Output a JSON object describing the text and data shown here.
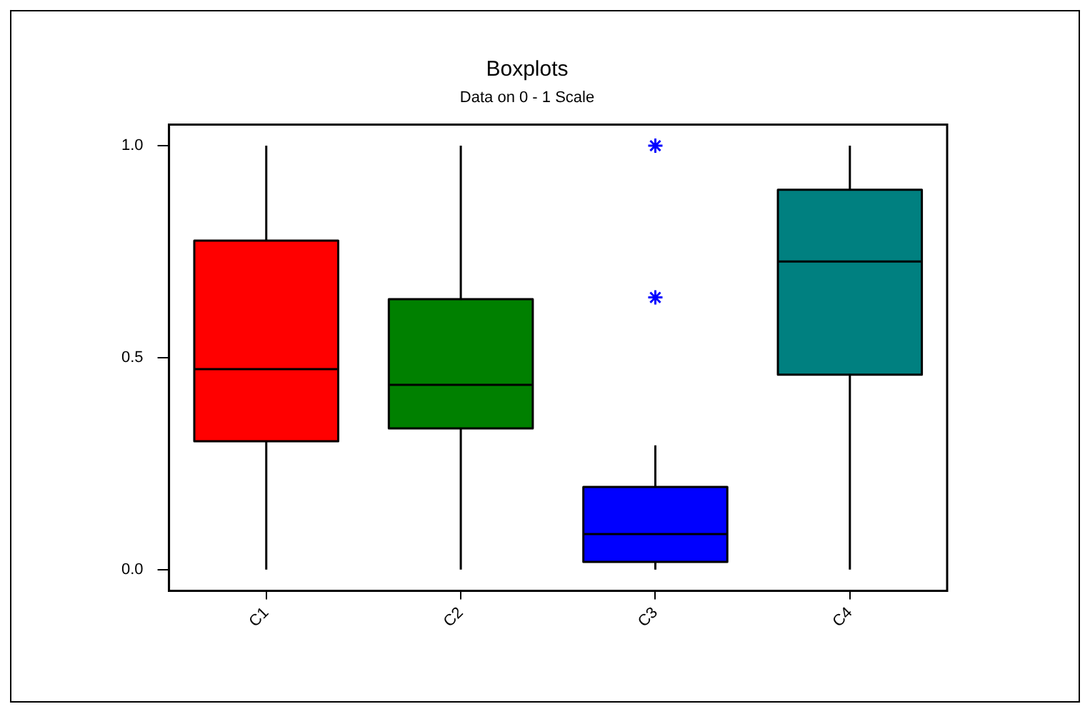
{
  "chart_data": {
    "type": "box",
    "title": "Boxplots",
    "subtitle": "Data on 0 - 1 Scale",
    "categories": [
      "C1",
      "C2",
      "C3",
      "C4"
    ],
    "colors": [
      "#ff0000",
      "#008000",
      "#0000ff",
      "#008080"
    ],
    "boxes": [
      {
        "low": 0.0,
        "q1": 0.303,
        "median": 0.473,
        "q3": 0.776,
        "high": 1.0
      },
      {
        "low": 0.0,
        "q1": 0.333,
        "median": 0.436,
        "q3": 0.638,
        "high": 1.0
      },
      {
        "low": 0.0,
        "q1": 0.018,
        "median": 0.084,
        "q3": 0.195,
        "high": 0.293,
        "outliers": [
          0.642,
          1.0
        ]
      },
      {
        "low": 0.0,
        "q1": 0.46,
        "median": 0.727,
        "q3": 0.896,
        "high": 1.0
      }
    ],
    "ylim": [
      -0.05,
      1.05
    ],
    "yticks": [
      {
        "value": 0,
        "label": "0.0"
      },
      {
        "value": 0.5,
        "label": "0.5"
      },
      {
        "value": 1,
        "label": "1.0"
      }
    ],
    "marker": "star"
  }
}
